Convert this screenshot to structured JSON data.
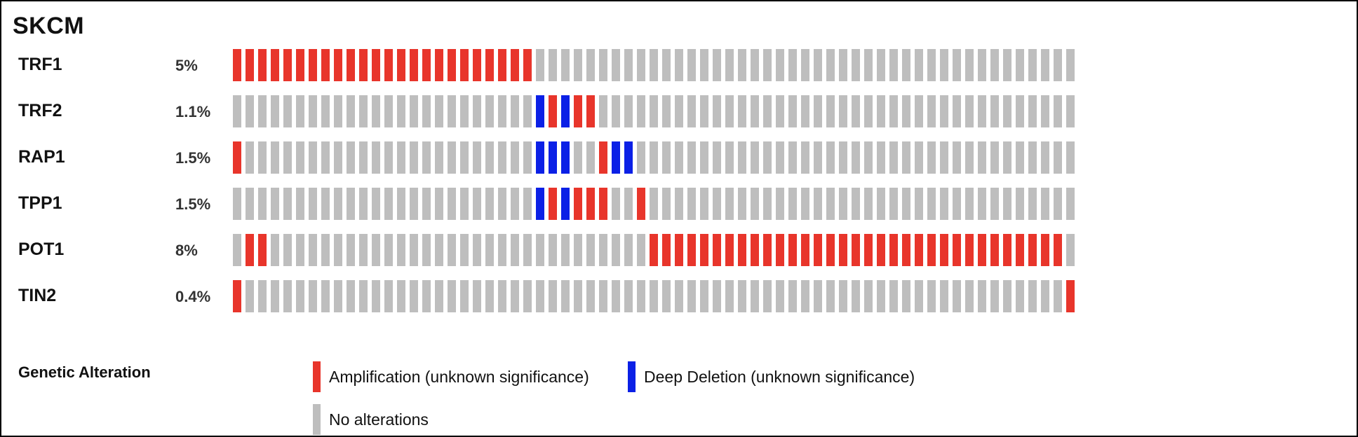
{
  "chart_data": {
    "type": "oncoprint",
    "title": "SKCM",
    "n_samples": 67,
    "genes": [
      {
        "name": "TRF1",
        "percent": "5%",
        "amplification": [
          0,
          1,
          2,
          3,
          4,
          5,
          6,
          7,
          8,
          9,
          10,
          11,
          12,
          13,
          14,
          15,
          16,
          17,
          18,
          19,
          20,
          21,
          22,
          23
        ],
        "deep_deletion": []
      },
      {
        "name": "TRF2",
        "percent": "1.1%",
        "amplification": [
          25,
          27,
          28
        ],
        "deep_deletion": [
          24,
          26
        ]
      },
      {
        "name": "RAP1",
        "percent": "1.5%",
        "amplification": [
          0,
          29
        ],
        "deep_deletion": [
          24,
          25,
          26,
          30,
          31
        ]
      },
      {
        "name": "TPP1",
        "percent": "1.5%",
        "amplification": [
          25,
          27,
          28,
          29,
          32
        ],
        "deep_deletion": [
          24,
          26
        ]
      },
      {
        "name": "POT1",
        "percent": "8%",
        "amplification": [
          1,
          2,
          33,
          34,
          35,
          36,
          37,
          38,
          39,
          40,
          41,
          42,
          43,
          44,
          45,
          46,
          47,
          48,
          49,
          50,
          51,
          52,
          53,
          54,
          55,
          56,
          57,
          58,
          59,
          60,
          61,
          62,
          63,
          64,
          65
        ],
        "deep_deletion": []
      },
      {
        "name": "TIN2",
        "percent": "0.4%",
        "amplification": [
          0,
          66
        ],
        "deep_deletion": []
      }
    ],
    "colors": {
      "amplification": "#e8352b",
      "deep_deletion": "#0b20e6",
      "no_alteration": "#bebebe"
    }
  },
  "legend": {
    "title": "Genetic Alteration",
    "items": [
      {
        "label": "Amplification (unknown significance)",
        "color": "#e8352b"
      },
      {
        "label": "Deep Deletion (unknown significance)",
        "color": "#0b20e6"
      },
      {
        "label": "No alterations",
        "color": "#bebebe"
      }
    ]
  }
}
